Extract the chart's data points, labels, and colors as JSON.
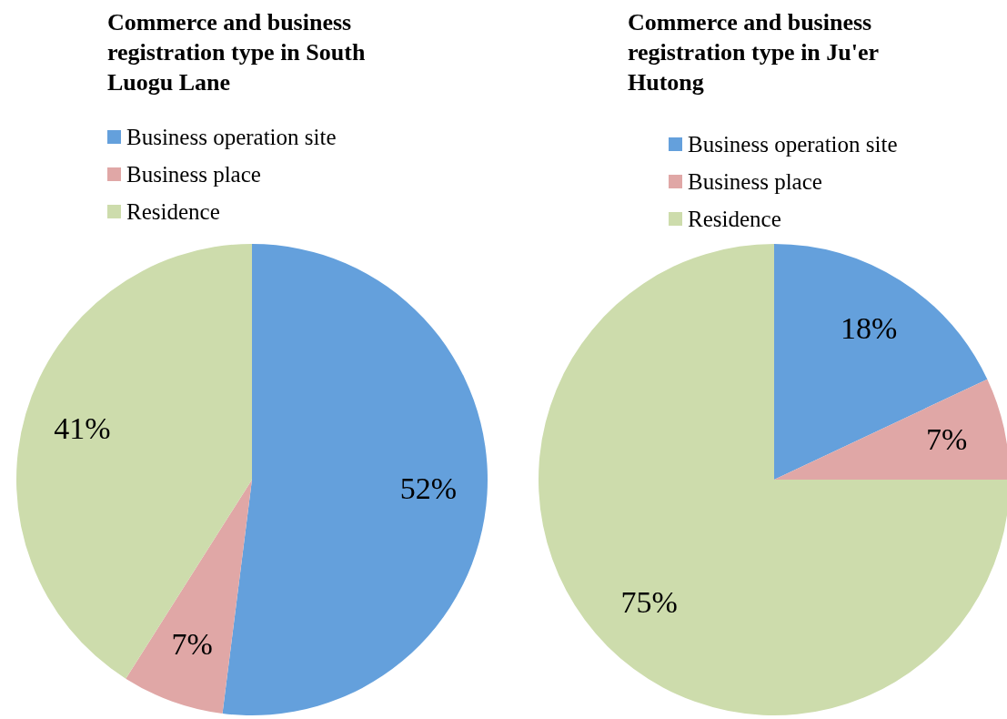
{
  "chart_data": [
    {
      "type": "pie",
      "title": "Commerce and business registration  type in South Luogu Lane",
      "categories": [
        "Business operation site",
        "Business place",
        "Residence"
      ],
      "values": [
        52,
        7,
        41
      ],
      "value_labels": [
        "52%",
        "7%",
        "41%"
      ],
      "colors": [
        "#64a0dc",
        "#e0a7a6",
        "#cddcac"
      ],
      "legend": "top left"
    },
    {
      "type": "pie",
      "title": "Commerce and business registration type in Ju'er Hutong",
      "categories": [
        "Business operation site",
        "Business place",
        "Residence"
      ],
      "values": [
        18,
        7,
        75
      ],
      "value_labels": [
        "18%",
        "7%",
        "75%"
      ],
      "colors": [
        "#64a0dc",
        "#e0a7a6",
        "#cddcac"
      ],
      "legend": "top left"
    }
  ]
}
